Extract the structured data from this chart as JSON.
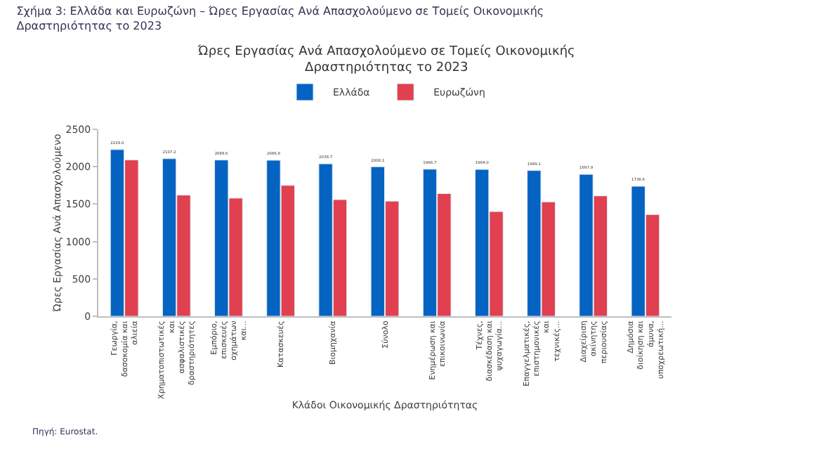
{
  "chart_data": {
    "type": "bar",
    "title": "Σχήμα 3: Ελλάδα και Ευρωζώνη – Ώρες Εργασίας Ανά Απασχολούμενο σε Τομείς Οικονομικής Δραστηριότητας το 2023",
    "subtitle": "Ώρες Εργασίας Ανά Απασχολούμενο σε Τομείς Οικονομικής Δραστηριότητας το 2023",
    "xlabel": "Κλάδοι Οικονομικής Δραστηριότητας",
    "ylabel": "Ώρες Εργασίας Ανά Απασχολούμενο",
    "categories": [
      "Γεωργία, δασοκομία και αλιεία",
      "Χρηματοπιστωτικές και ασφαλιστικές δραστηριότητες",
      "Εμπόριο, επισκευές οχημάτων και...",
      "Κατασκευές",
      "Βιομηχανία",
      "Σύνολο",
      "Ενημέρωση και επικοινωνία",
      "Τέχνες, διασκέδαση και ψυχαγωγία...",
      "Επαγγελματικές, επιστημονικές και τεχνικές...",
      "Διαχείριση ακίνητης περιουσίας",
      "Δημόσια διοίκηση και άμυνα, υποχρεωτική..."
    ],
    "series": [
      {
        "name": "Ελλάδα",
        "color": "#0563c1",
        "values": [
          2229.0,
          2107.2,
          2089.6,
          2086.8,
          2038.7,
          2000.1,
          1966.7,
          1964.0,
          1949.1,
          1897.9,
          1738.6
        ],
        "value_labels": [
          "2229.0",
          "2107.2",
          "2089.6",
          "2086.8",
          "2038.7",
          "2000.1",
          "1966.7",
          "1964.0",
          "1949.1",
          "1897.9",
          "1738.6"
        ]
      },
      {
        "name": "Ευρωζώνη",
        "color": "#e0404f",
        "values": [
          2090,
          1620,
          1580,
          1750,
          1560,
          1540,
          1640,
          1400,
          1530,
          1610,
          1360
        ]
      }
    ],
    "ylim": [
      0,
      2500
    ],
    "yticks": [
      0,
      500,
      1000,
      1500,
      2000,
      2500
    ],
    "legend": "top",
    "annotations": [
      "Πηγή: Eurostat."
    ]
  }
}
